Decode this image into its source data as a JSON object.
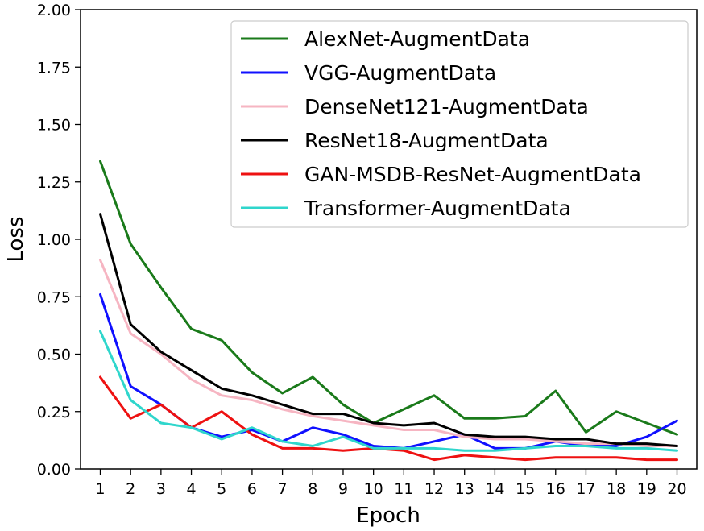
{
  "chart_data": {
    "type": "line",
    "xlabel": "Epoch",
    "ylabel": "Loss",
    "x": [
      1,
      2,
      3,
      4,
      5,
      6,
      7,
      8,
      9,
      10,
      11,
      12,
      13,
      14,
      15,
      16,
      17,
      18,
      19,
      20
    ],
    "xlim": [
      0.35,
      20.65
    ],
    "ylim": [
      0,
      2.0
    ],
    "yticks": [
      0.0,
      0.25,
      0.5,
      0.75,
      1.0,
      1.25,
      1.5,
      1.75,
      2.0
    ],
    "ytick_labels": [
      "0.00",
      "0.25",
      "0.50",
      "0.75",
      "1.00",
      "1.25",
      "1.50",
      "1.75",
      "2.00"
    ],
    "xtick_labels": [
      "1",
      "2",
      "3",
      "4",
      "5",
      "6",
      "7",
      "8",
      "9",
      "10",
      "11",
      "12",
      "13",
      "14",
      "15",
      "16",
      "17",
      "18",
      "19",
      "20"
    ],
    "grid": false,
    "legend_position": "top-right",
    "series": [
      {
        "name": "AlexNet-AugmentData",
        "color": "#1a7a1a",
        "values": [
          1.34,
          0.98,
          0.79,
          0.61,
          0.56,
          0.42,
          0.33,
          0.4,
          0.28,
          0.2,
          0.26,
          0.32,
          0.22,
          0.22,
          0.23,
          0.34,
          0.16,
          0.25,
          0.2,
          0.15
        ]
      },
      {
        "name": "VGG-AugmentData",
        "color": "#1010ff",
        "values": [
          0.76,
          0.36,
          0.28,
          0.18,
          0.14,
          0.17,
          0.12,
          0.18,
          0.15,
          0.1,
          0.09,
          0.12,
          0.15,
          0.09,
          0.09,
          0.12,
          0.1,
          0.1,
          0.14,
          0.21
        ]
      },
      {
        "name": "DenseNet121-AugmentData",
        "color": "#f6b5c2",
        "values": [
          0.91,
          0.59,
          0.5,
          0.39,
          0.32,
          0.3,
          0.26,
          0.23,
          0.21,
          0.19,
          0.17,
          0.17,
          0.14,
          0.13,
          0.13,
          0.12,
          0.11,
          0.11,
          0.1,
          0.1
        ]
      },
      {
        "name": "ResNet18-AugmentData",
        "color": "#000000",
        "values": [
          1.11,
          0.63,
          0.51,
          0.43,
          0.35,
          0.32,
          0.28,
          0.24,
          0.24,
          0.2,
          0.19,
          0.2,
          0.15,
          0.14,
          0.14,
          0.13,
          0.13,
          0.11,
          0.11,
          0.1
        ]
      },
      {
        "name": "GAN-MSDB-ResNet-AugmentData",
        "color": "#ee1111",
        "values": [
          0.4,
          0.22,
          0.28,
          0.18,
          0.25,
          0.15,
          0.09,
          0.09,
          0.08,
          0.09,
          0.08,
          0.04,
          0.06,
          0.05,
          0.04,
          0.05,
          0.05,
          0.05,
          0.04,
          0.04
        ]
      },
      {
        "name": "Transformer-AugmentData",
        "color": "#2fd6cc",
        "values": [
          0.6,
          0.3,
          0.2,
          0.18,
          0.13,
          0.18,
          0.12,
          0.1,
          0.14,
          0.09,
          0.09,
          0.09,
          0.08,
          0.08,
          0.09,
          0.1,
          0.1,
          0.09,
          0.09,
          0.08
        ]
      }
    ]
  }
}
